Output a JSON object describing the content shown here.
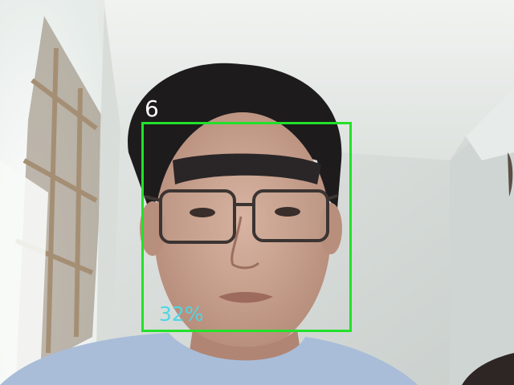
{
  "detection": {
    "track_id": "6",
    "confidence": "32%",
    "box_color": "#22e12a",
    "confidence_color": "#4fd6e4",
    "id_color": "#ffffff"
  },
  "icons": {
    "scene": "webcam-frame"
  }
}
